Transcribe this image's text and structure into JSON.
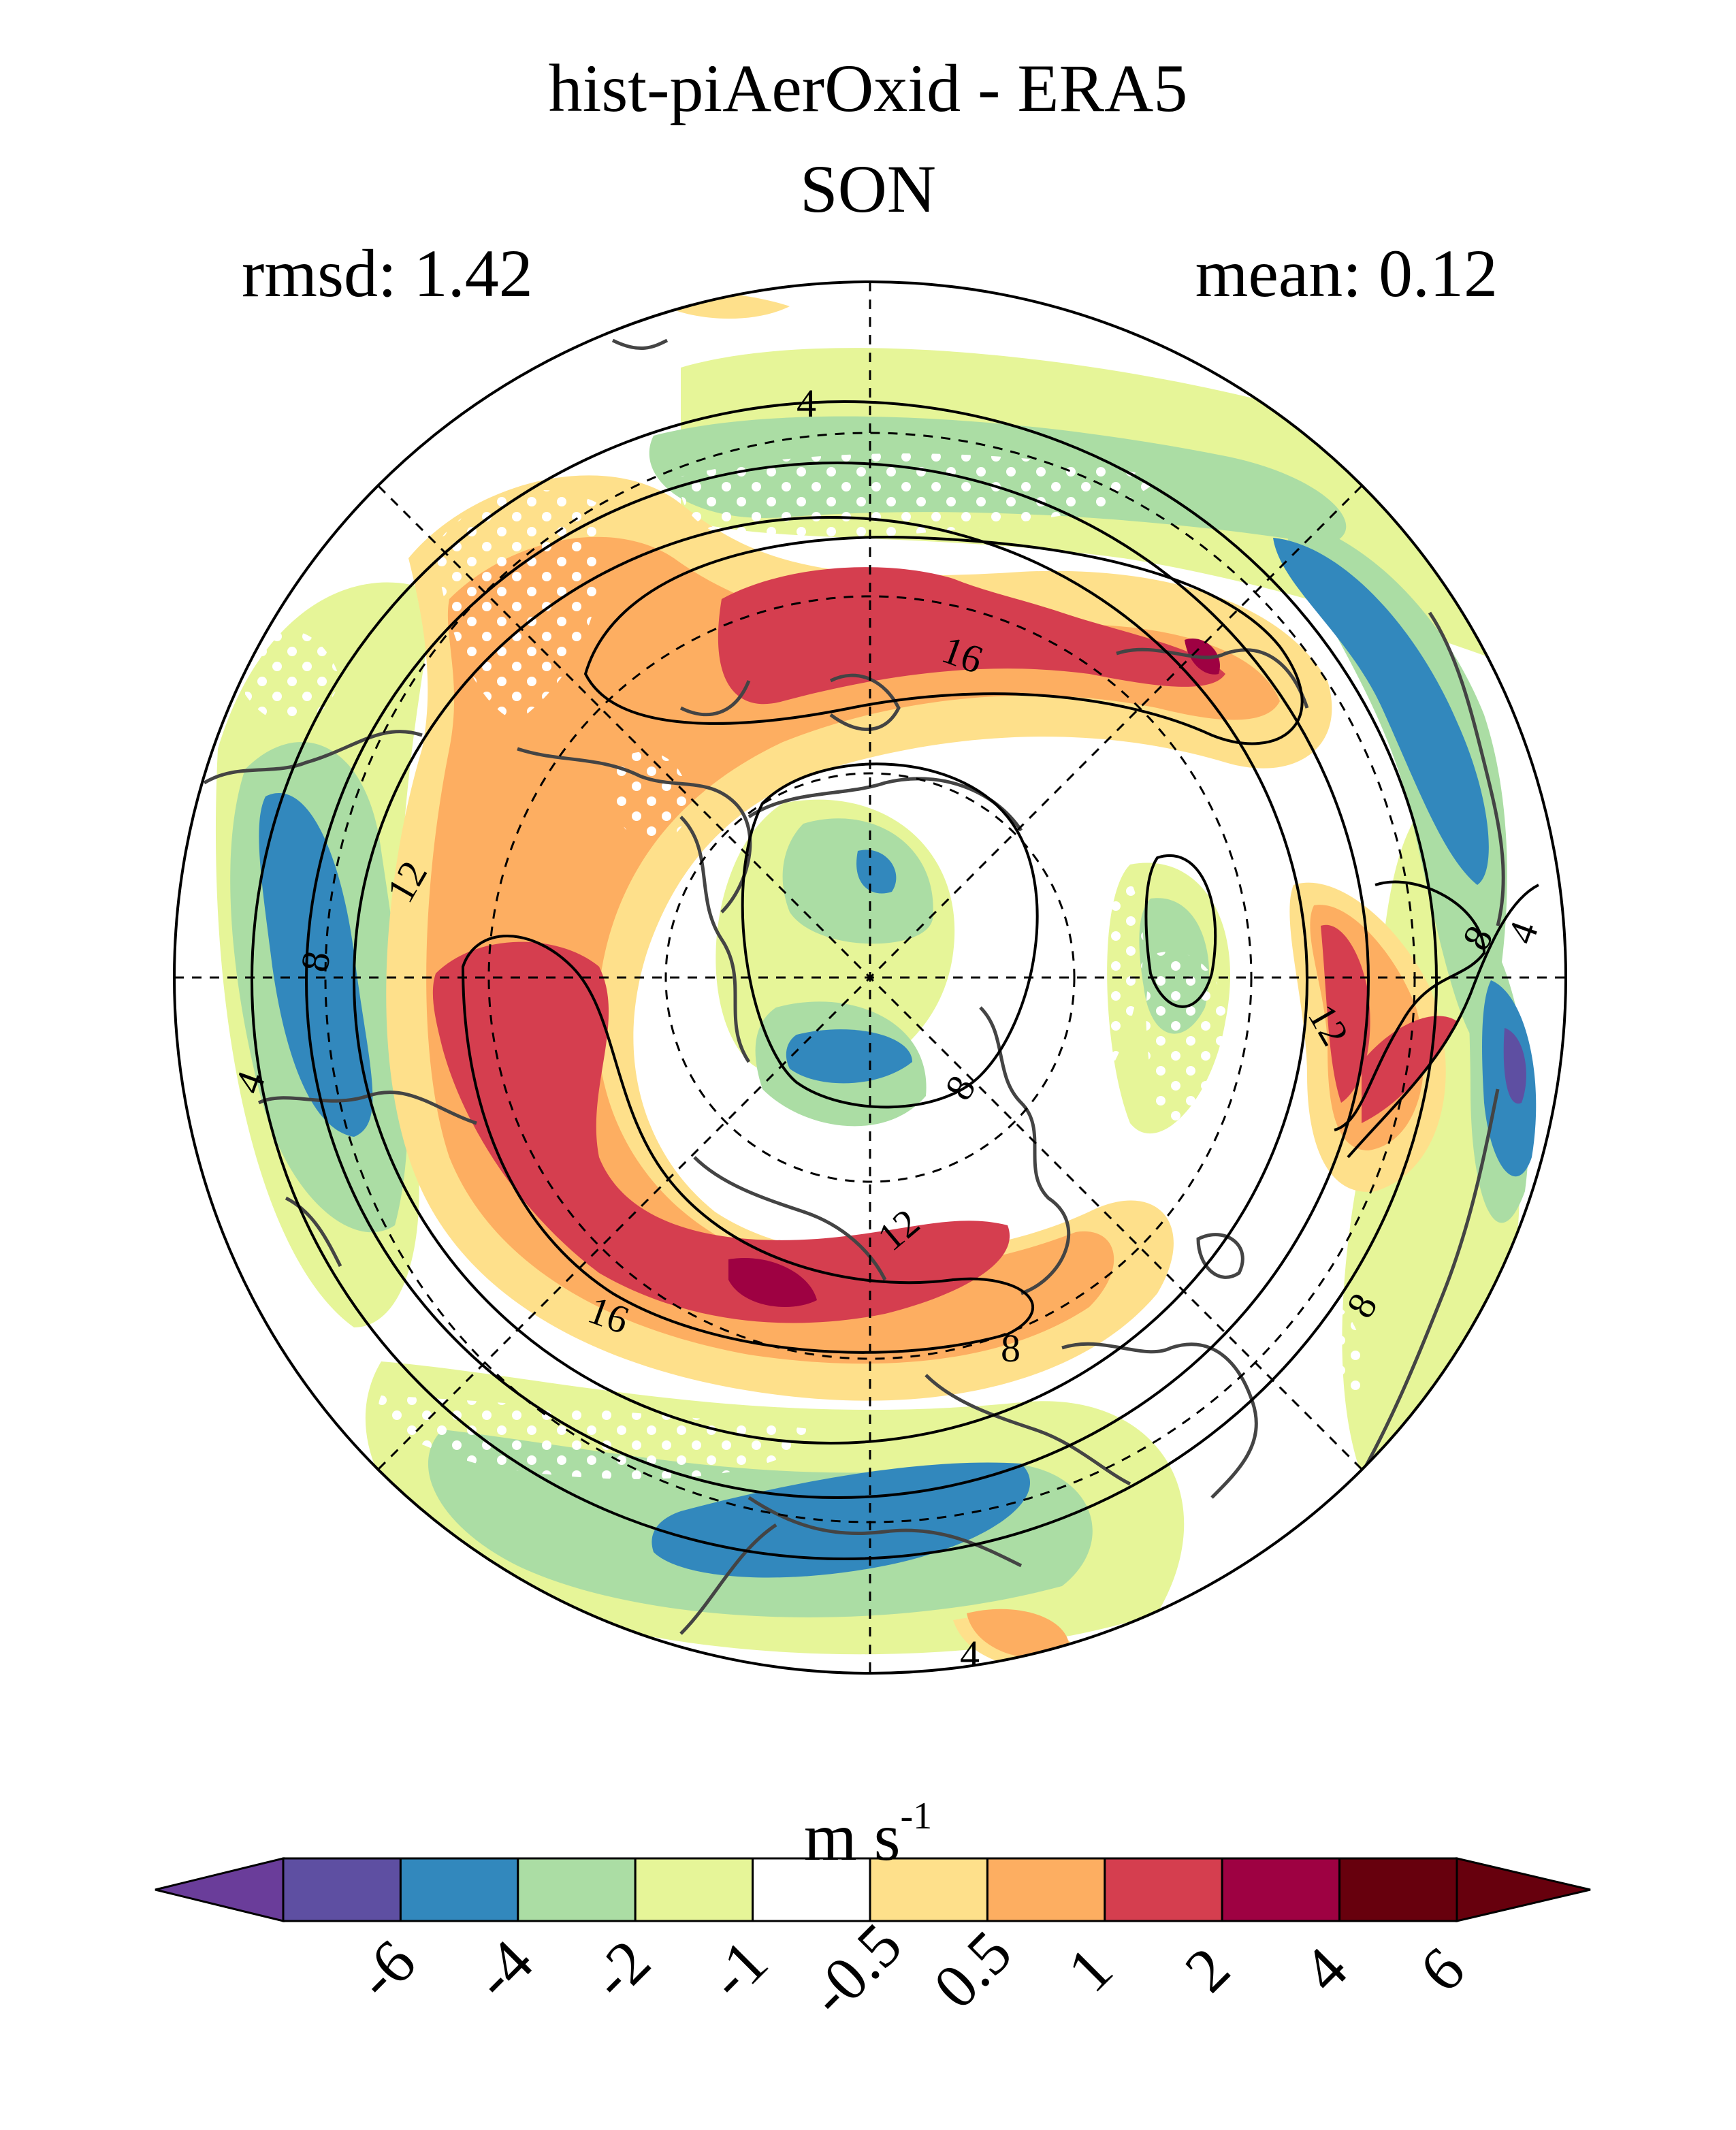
{
  "figure": {
    "title": "hist-piAerOxid - ERA5",
    "season": "SON",
    "rmsd": "rmsd: 1.42",
    "mean": "mean: 0.12"
  },
  "map": {
    "projection": "north polar stereographic",
    "contour_levels": [
      "4",
      "4",
      "4",
      "4",
      "8",
      "8",
      "8",
      "8",
      "8",
      "12",
      "12",
      "12",
      "16",
      "16"
    ],
    "stippling": true
  },
  "colorbar": {
    "units": "m s",
    "units_exp": "-1",
    "ticks": [
      "-6",
      "-4",
      "-2",
      "-1",
      "-0.5",
      "0.5",
      "1",
      "2",
      "4",
      "6"
    ],
    "colors": [
      "#5e4fa2",
      "#3288bd",
      "#abdda4",
      "#e6f598",
      "#ffffff",
      "#fee08b",
      "#fdae61",
      "#d53e4f",
      "#9e0142",
      "#67000d"
    ],
    "under_color": "#6a3d9a",
    "over_color": "#67000d"
  }
}
